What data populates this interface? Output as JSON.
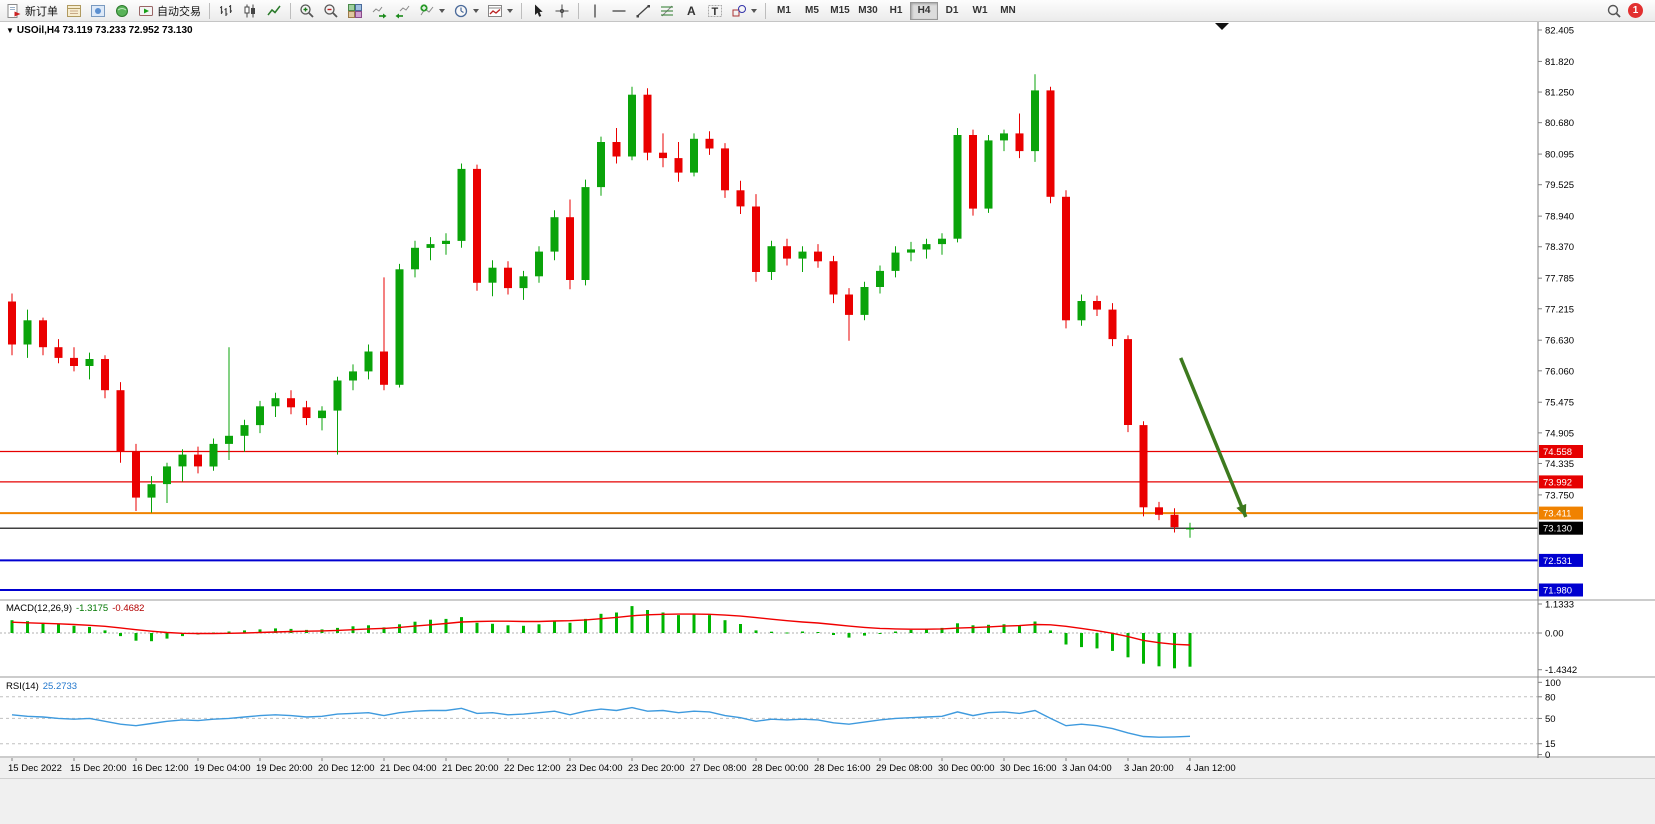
{
  "app": {
    "badge_count": "1"
  },
  "toolbar": {
    "new_order": "新订单",
    "autotrade": "自动交易",
    "timeframes": [
      "M1",
      "M5",
      "M15",
      "M30",
      "H1",
      "H4",
      "D1",
      "W1",
      "MN"
    ],
    "active_timeframe": "H4"
  },
  "chart": {
    "title": "USOil,H4 73.119 73.233 72.952 73.130",
    "price_axis_labels": [
      "82.405",
      "81.820",
      "81.250",
      "80.680",
      "80.095",
      "79.525",
      "78.940",
      "78.370",
      "77.785",
      "77.215",
      "76.630",
      "76.060",
      "75.475",
      "74.905",
      "74.335",
      "73.750"
    ],
    "lines": [
      {
        "label": "74.558",
        "price": 74.558,
        "color": "#e60000",
        "width": 1.2
      },
      {
        "label": "73.992",
        "price": 73.992,
        "color": "#e60000",
        "width": 1.2
      },
      {
        "label": "73.411",
        "price": 73.411,
        "color": "#f08200",
        "width": 2
      },
      {
        "label": "73.130",
        "price": 73.13,
        "color": "#000000",
        "width": 1.2
      },
      {
        "label": "72.531",
        "price": 72.531,
        "color": "#0000d0",
        "width": 2
      },
      {
        "label": "71.980",
        "price": 71.98,
        "color": "#0000d0",
        "width": 2
      }
    ]
  },
  "macd_panel": {
    "name": "MACD(12,26,9)",
    "value_main": "-1.3175",
    "value_signal": "-0.4682",
    "axis_labels": [
      "1.1333",
      "0.00",
      "-1.4342"
    ]
  },
  "rsi_panel": {
    "name": "RSI(14)",
    "value": "25.2733",
    "axis_labels": [
      "100",
      "80",
      "50",
      "15",
      "0"
    ]
  },
  "chart_data": [
    {
      "type": "candlestick",
      "symbol": "USOil",
      "timeframe": "H4",
      "current_ohlc": {
        "open": 73.119,
        "high": 73.233,
        "low": 72.952,
        "close": 73.13
      },
      "ylim": [
        71.812,
        82.554
      ],
      "up_color": "#0aa30a",
      "down_color": "#ea0000",
      "label_step": 4,
      "time_labels": [
        "15 Dec 2022",
        "15 Dec 20:00",
        "16 Dec 12:00",
        "19 Dec 04:00",
        "19 Dec 20:00",
        "20 Dec 12:00",
        "21 Dec 04:00",
        "21 Dec 20:00",
        "22 Dec 12:00",
        "23 Dec 04:00",
        "23 Dec 20:00",
        "27 Dec 08:00",
        "28 Dec 00:00",
        "28 Dec 16:00",
        "29 Dec 08:00",
        "30 Dec 00:00",
        "30 Dec 16:00",
        "3 Jan 04:00",
        "3 Jan 20:00",
        "4 Jan 12:00"
      ],
      "ohlc": [
        [
          77.35,
          77.5,
          76.35,
          76.55
        ],
        [
          76.55,
          77.2,
          76.3,
          77.0
        ],
        [
          77.0,
          77.05,
          76.35,
          76.5
        ],
        [
          76.5,
          76.65,
          76.2,
          76.3
        ],
        [
          76.3,
          76.5,
          76.05,
          76.15
        ],
        [
          76.15,
          76.4,
          75.9,
          76.28
        ],
        [
          76.28,
          76.35,
          75.55,
          75.7
        ],
        [
          75.7,
          75.85,
          74.35,
          74.55
        ],
        [
          74.55,
          74.7,
          73.45,
          73.7
        ],
        [
          73.7,
          74.1,
          73.42,
          73.95
        ],
        [
          73.95,
          74.35,
          73.6,
          74.28
        ],
        [
          74.28,
          74.6,
          74.0,
          74.5
        ],
        [
          74.5,
          74.65,
          74.15,
          74.28
        ],
        [
          74.28,
          74.8,
          74.2,
          74.7
        ],
        [
          74.7,
          76.5,
          74.4,
          74.85
        ],
        [
          74.85,
          75.15,
          74.55,
          75.05
        ],
        [
          75.05,
          75.5,
          74.9,
          75.4
        ],
        [
          75.4,
          75.65,
          75.2,
          75.55
        ],
        [
          75.55,
          75.7,
          75.25,
          75.38
        ],
        [
          75.38,
          75.5,
          75.05,
          75.18
        ],
        [
          75.18,
          75.4,
          74.95,
          75.32
        ],
        [
          75.32,
          75.95,
          74.5,
          75.88
        ],
        [
          75.88,
          76.18,
          75.7,
          76.05
        ],
        [
          76.05,
          76.55,
          75.9,
          76.42
        ],
        [
          76.42,
          77.8,
          75.7,
          75.8
        ],
        [
          75.8,
          78.05,
          75.75,
          77.95
        ],
        [
          77.95,
          78.48,
          77.8,
          78.35
        ],
        [
          78.35,
          78.55,
          78.12,
          78.42
        ],
        [
          78.42,
          78.62,
          78.22,
          78.48
        ],
        [
          78.48,
          79.92,
          78.35,
          79.82
        ],
        [
          79.82,
          79.9,
          77.55,
          77.7
        ],
        [
          77.7,
          78.12,
          77.45,
          77.98
        ],
        [
          77.98,
          78.1,
          77.48,
          77.6
        ],
        [
          77.6,
          77.92,
          77.38,
          77.82
        ],
        [
          77.82,
          78.38,
          77.7,
          78.28
        ],
        [
          78.28,
          79.05,
          78.12,
          78.92
        ],
        [
          78.92,
          79.25,
          77.58,
          77.75
        ],
        [
          77.75,
          79.62,
          77.65,
          79.48
        ],
        [
          79.48,
          80.42,
          79.32,
          80.32
        ],
        [
          80.32,
          80.58,
          79.92,
          80.05
        ],
        [
          80.05,
          81.35,
          79.98,
          81.2
        ],
        [
          81.2,
          81.32,
          79.98,
          80.12
        ],
        [
          80.12,
          80.48,
          79.85,
          80.02
        ],
        [
          80.02,
          80.32,
          79.58,
          79.75
        ],
        [
          79.75,
          80.48,
          79.68,
          80.38
        ],
        [
          80.38,
          80.52,
          80.08,
          80.2
        ],
        [
          80.2,
          80.3,
          79.28,
          79.42
        ],
        [
          79.42,
          79.6,
          78.98,
          79.12
        ],
        [
          79.12,
          79.35,
          77.72,
          77.9
        ],
        [
          77.9,
          78.48,
          77.75,
          78.38
        ],
        [
          78.38,
          78.52,
          78.02,
          78.15
        ],
        [
          78.15,
          78.38,
          77.9,
          78.28
        ],
        [
          78.28,
          78.42,
          77.98,
          78.1
        ],
        [
          78.1,
          78.2,
          77.32,
          77.48
        ],
        [
          77.48,
          77.6,
          76.62,
          77.1
        ],
        [
          77.1,
          77.72,
          77.0,
          77.62
        ],
        [
          77.62,
          78.02,
          77.5,
          77.92
        ],
        [
          77.92,
          78.38,
          77.8,
          78.26
        ],
        [
          78.26,
          78.46,
          78.1,
          78.32
        ],
        [
          78.32,
          78.52,
          78.15,
          78.42
        ],
        [
          78.42,
          78.62,
          78.22,
          78.52
        ],
        [
          78.52,
          80.58,
          78.45,
          80.45
        ],
        [
          80.45,
          80.55,
          78.95,
          79.08
        ],
        [
          79.08,
          80.45,
          79.0,
          80.35
        ],
        [
          80.35,
          80.55,
          80.15,
          80.48
        ],
        [
          80.48,
          80.85,
          80.02,
          80.15
        ],
        [
          80.15,
          81.58,
          79.95,
          81.28
        ],
        [
          81.28,
          81.35,
          79.18,
          79.3
        ],
        [
          79.3,
          79.42,
          76.85,
          77.0
        ],
        [
          77.0,
          77.48,
          76.9,
          77.36
        ],
        [
          77.36,
          77.46,
          77.08,
          77.2
        ],
        [
          77.2,
          77.32,
          76.52,
          76.65
        ],
        [
          76.65,
          76.72,
          74.92,
          75.05
        ],
        [
          75.05,
          75.12,
          73.35,
          73.52
        ],
        [
          73.52,
          73.62,
          73.28,
          73.38
        ],
        [
          73.38,
          73.5,
          73.05,
          73.15
        ],
        [
          73.119,
          73.233,
          72.952,
          73.13
        ]
      ],
      "annotations": [
        {
          "type": "arrow",
          "from": [
            75.4,
            76.3
          ],
          "to": [
            79.6,
            73.34
          ],
          "color": "#3d7a1e"
        }
      ]
    },
    {
      "type": "macd",
      "name": "MACD(12,26,9)",
      "ylim": [
        -1.68,
        1.25
      ],
      "hist_color": "#00b400",
      "signal_color": "#f00000",
      "histogram": [
        0.5,
        0.46,
        0.4,
        0.34,
        0.28,
        0.24,
        0.1,
        -0.12,
        -0.3,
        -0.32,
        -0.22,
        -0.12,
        -0.06,
        0.02,
        0.06,
        0.1,
        0.14,
        0.18,
        0.16,
        0.12,
        0.14,
        0.2,
        0.26,
        0.3,
        0.22,
        0.34,
        0.44,
        0.52,
        0.55,
        0.62,
        0.4,
        0.36,
        0.3,
        0.28,
        0.34,
        0.46,
        0.4,
        0.55,
        0.75,
        0.8,
        1.05,
        0.9,
        0.8,
        0.7,
        0.75,
        0.7,
        0.5,
        0.35,
        0.1,
        0.05,
        0.02,
        0.06,
        0.04,
        -0.08,
        -0.18,
        -0.1,
        -0.02,
        0.06,
        0.12,
        0.16,
        0.2,
        0.38,
        0.3,
        0.32,
        0.34,
        0.28,
        0.45,
        0.1,
        -0.45,
        -0.55,
        -0.6,
        -0.7,
        -0.95,
        -1.2,
        -1.3,
        -1.38,
        -1.3175
      ],
      "signal": [
        0.42,
        0.4,
        0.38,
        0.36,
        0.33,
        0.3,
        0.26,
        0.2,
        0.13,
        0.07,
        0.02,
        -0.01,
        -0.02,
        -0.02,
        -0.01,
        0.0,
        0.02,
        0.04,
        0.06,
        0.07,
        0.08,
        0.1,
        0.13,
        0.16,
        0.18,
        0.22,
        0.27,
        0.32,
        0.37,
        0.43,
        0.45,
        0.46,
        0.46,
        0.45,
        0.45,
        0.47,
        0.48,
        0.51,
        0.56,
        0.61,
        0.67,
        0.71,
        0.73,
        0.74,
        0.74,
        0.73,
        0.7,
        0.66,
        0.6,
        0.54,
        0.48,
        0.43,
        0.39,
        0.33,
        0.27,
        0.22,
        0.18,
        0.16,
        0.15,
        0.15,
        0.16,
        0.19,
        0.21,
        0.24,
        0.27,
        0.29,
        0.33,
        0.32,
        0.26,
        0.18,
        0.09,
        -0.01,
        -0.14,
        -0.29,
        -0.38,
        -0.44,
        -0.4682
      ]
    },
    {
      "type": "line",
      "name": "RSI(14)",
      "ylim": [
        -2,
        106
      ],
      "color": "#3e9ade",
      "levels": [
        80,
        50,
        15
      ],
      "values": [
        55,
        53,
        52,
        50,
        49,
        50,
        46,
        42,
        40,
        43,
        46,
        48,
        47,
        49,
        50,
        52,
        54,
        55,
        54,
        52,
        53,
        56,
        57,
        58,
        54,
        58,
        60,
        61,
        61,
        64,
        57,
        58,
        55,
        56,
        58,
        60,
        55,
        60,
        63,
        61,
        65,
        60,
        61,
        58,
        60,
        59,
        54,
        51,
        46,
        49,
        48,
        49,
        48,
        44,
        42,
        45,
        48,
        50,
        51,
        52,
        53,
        59,
        54,
        58,
        59,
        57,
        61,
        50,
        40,
        42,
        40,
        36,
        30,
        25,
        24,
        24.5,
        25.2733
      ]
    }
  ]
}
